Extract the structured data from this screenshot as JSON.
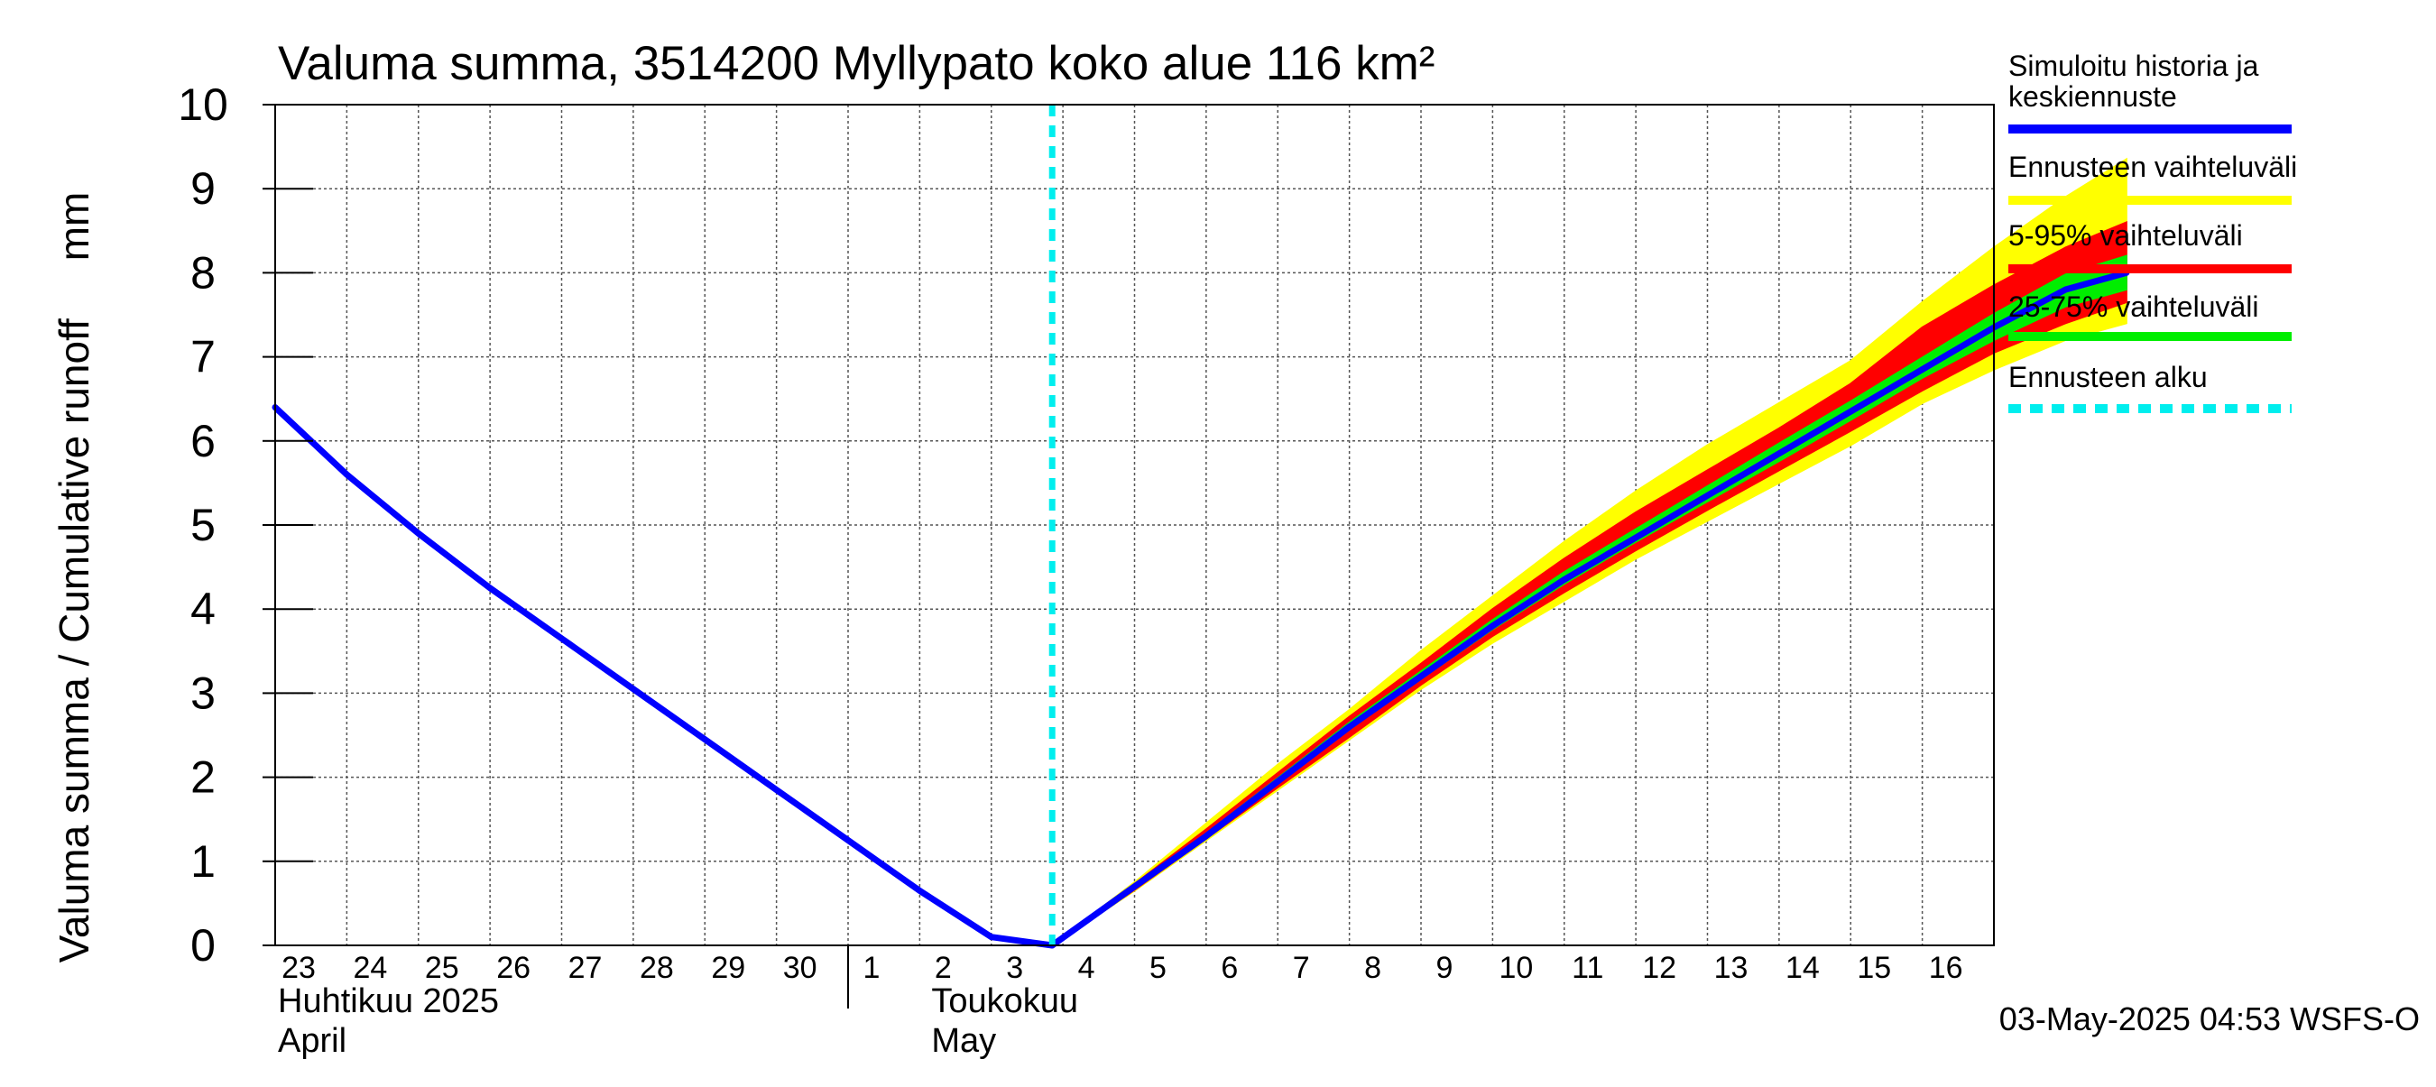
{
  "chart_data": {
    "type": "area",
    "title": "Valuma summa, 3514200 Myllypato koko alue 116 km²",
    "ylabel": "Valuma summa / Cumulative runoff     mm",
    "xlabel": "",
    "ylim": [
      0,
      10
    ],
    "yticks": [
      0,
      1,
      2,
      3,
      4,
      5,
      6,
      7,
      8,
      9,
      10
    ],
    "grid": true,
    "legend_position": "right",
    "x_tick_labels": [
      "23",
      "24",
      "25",
      "26",
      "27",
      "28",
      "29",
      "30",
      "1",
      "2",
      "3",
      "4",
      "5",
      "6",
      "7",
      "8",
      "9",
      "10",
      "11",
      "12",
      "13",
      "14",
      "15",
      "16"
    ],
    "month_labels": [
      {
        "fi": "Huhtikuu  2025",
        "en": "April"
      },
      {
        "fi": "Toukokuu",
        "en": "May"
      }
    ],
    "forecast_start_day": 10.85,
    "history": {
      "name": "Simuloitu historia ja keskiennuste",
      "color": "#0000ff",
      "x": [
        0,
        1,
        2,
        3,
        4,
        5,
        6,
        7,
        8,
        9,
        10,
        10.85
      ],
      "y": [
        6.4,
        5.6,
        4.9,
        4.25,
        3.65,
        3.05,
        2.45,
        1.85,
        1.25,
        0.65,
        0.1,
        0.0
      ]
    },
    "forecast_x": [
      10.85,
      12,
      13,
      14,
      15,
      16,
      17,
      18,
      19,
      20,
      21,
      22,
      23,
      24,
      25,
      25.85
    ],
    "median": {
      "name": "Simuloitu historia ja keskiennuste",
      "color": "#0000ff",
      "y": [
        0.0,
        0.7,
        1.3,
        1.95,
        2.6,
        3.2,
        3.8,
        4.35,
        4.85,
        5.35,
        5.85,
        6.35,
        6.85,
        7.35,
        7.8,
        8.0
      ]
    },
    "band_full": {
      "name": "Ennusteen vaihteluväli",
      "color": "#ffff00",
      "low": [
        0.0,
        0.65,
        1.25,
        1.85,
        2.45,
        3.05,
        3.6,
        4.1,
        4.6,
        5.05,
        5.5,
        5.95,
        6.45,
        6.85,
        7.2,
        7.4
      ],
      "high": [
        0.0,
        0.75,
        1.45,
        2.15,
        2.8,
        3.5,
        4.15,
        4.8,
        5.4,
        5.95,
        6.45,
        6.95,
        7.65,
        8.3,
        8.9,
        9.35
      ]
    },
    "band_5_95": {
      "name": "5-95% vaihteluväli",
      "color": "#ff0000",
      "low": [
        0.0,
        0.66,
        1.27,
        1.88,
        2.48,
        3.1,
        3.68,
        4.2,
        4.7,
        5.18,
        5.65,
        6.12,
        6.6,
        7.05,
        7.4,
        7.65
      ],
      "high": [
        0.0,
        0.73,
        1.38,
        2.05,
        2.72,
        3.35,
        4.0,
        4.6,
        5.15,
        5.65,
        6.15,
        6.68,
        7.35,
        7.85,
        8.3,
        8.6
      ]
    },
    "band_25_75": {
      "name": "25-75% vaihteluväli",
      "color": "#00ee00",
      "low": [
        0.0,
        0.68,
        1.29,
        1.93,
        2.57,
        3.17,
        3.76,
        4.3,
        4.8,
        5.28,
        5.76,
        6.25,
        6.75,
        7.2,
        7.6,
        7.8
      ],
      "high": [
        0.0,
        0.71,
        1.33,
        1.99,
        2.65,
        3.26,
        3.87,
        4.44,
        4.95,
        5.46,
        5.97,
        6.47,
        6.99,
        7.51,
        7.98,
        8.2
      ]
    },
    "forecast_start_line": {
      "name": "Ennusteen alku",
      "color": "#00eeee"
    },
    "legend": [
      {
        "label": "Simuloitu historia ja keskiennuste",
        "lines": [
          "Simuloitu historia ja",
          "keskiennuste"
        ],
        "color": "#0000ff",
        "style": "solid"
      },
      {
        "label": "Ennusteen vaihteluväli",
        "lines": [
          "Ennusteen vaihteluväli"
        ],
        "color": "#ffff00",
        "style": "solid"
      },
      {
        "label": "5-95% vaihteluväli",
        "lines": [
          "5-95% vaihteluväli"
        ],
        "color": "#ff0000",
        "style": "solid"
      },
      {
        "label": "25-75% vaihteluväli",
        "lines": [
          "25-75% vaihteluväli"
        ],
        "color": "#00ee00",
        "style": "solid"
      },
      {
        "label": "Ennusteen alku",
        "lines": [
          "Ennusteen alku"
        ],
        "color": "#00eeee",
        "style": "dashed"
      }
    ],
    "footer": "03-May-2025 04:53 WSFS-O"
  }
}
